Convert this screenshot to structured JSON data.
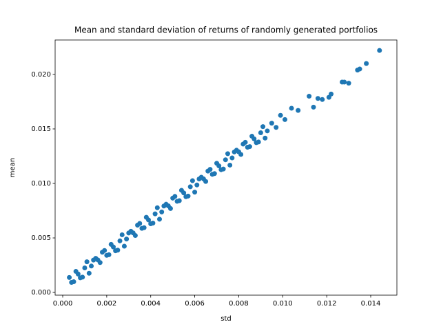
{
  "chart_data": {
    "type": "scatter",
    "title": "Mean and standard deviation of returns of randomly generated portfolios",
    "xlabel": "std",
    "ylabel": "mean",
    "color": "#1f77b4",
    "x": [
      0.0003,
      0.0005,
      0.0007,
      0.0009,
      0.0011,
      0.0013,
      0.0015,
      0.0017,
      0.0019,
      0.0021,
      0.0023,
      0.0025,
      0.0027,
      0.0029,
      0.0031,
      0.0033,
      0.0035,
      0.0037,
      0.0039,
      0.0041,
      0.0043,
      0.0045,
      0.0047,
      0.0049,
      0.0051,
      0.0053,
      0.0055,
      0.0057,
      0.0059,
      0.0061,
      0.0063,
      0.0065,
      0.0067,
      0.0069,
      0.0071,
      0.0073,
      0.0075,
      0.0077,
      0.0079,
      0.0081,
      0.0083,
      0.0085,
      0.0087,
      0.0089,
      0.0091,
      0.0093,
      0.0095,
      0.0097,
      0.0099,
      0.0101,
      0.0004,
      0.0006,
      0.0008,
      0.001,
      0.0012,
      0.0014,
      0.0016,
      0.0018,
      0.002,
      0.0022,
      0.0024,
      0.0026,
      0.0028,
      0.003,
      0.0032,
      0.0034,
      0.0036,
      0.0038,
      0.004,
      0.0042,
      0.0044,
      0.0046,
      0.0048,
      0.005,
      0.0052,
      0.0054,
      0.0056,
      0.0058,
      0.006,
      0.0062,
      0.0064,
      0.0066,
      0.0068,
      0.007,
      0.0072,
      0.0074,
      0.0076,
      0.0078,
      0.008,
      0.0082,
      0.0084,
      0.0086,
      0.0088,
      0.009,
      0.0092,
      0.0104,
      0.0107,
      0.0112,
      0.0114,
      0.0116,
      0.0118,
      0.0121,
      0.0122,
      0.0127,
      0.0128,
      0.013,
      0.0134,
      0.0135,
      0.0138,
      0.0144
    ],
    "y": [
      0.00137,
      0.00098,
      0.00169,
      0.0014,
      0.00281,
      0.00242,
      0.00313,
      0.00274,
      0.00385,
      0.00346,
      0.00417,
      0.00388,
      0.00529,
      0.0049,
      0.00561,
      0.00522,
      0.00633,
      0.00594,
      0.00665,
      0.00636,
      0.00777,
      0.00738,
      0.00809,
      0.0077,
      0.00881,
      0.00842,
      0.00913,
      0.00884,
      0.01025,
      0.00986,
      0.01057,
      0.01018,
      0.01129,
      0.0109,
      0.01161,
      0.01132,
      0.01273,
      0.01234,
      0.01305,
      0.01266,
      0.01377,
      0.01338,
      0.01409,
      0.0138,
      0.01521,
      0.01482,
      0.01553,
      0.01514,
      0.01625,
      0.01586,
      0.00092,
      0.00193,
      0.00134,
      0.00225,
      0.00176,
      0.00297,
      0.00298,
      0.00369,
      0.0034,
      0.00441,
      0.00382,
      0.00473,
      0.00424,
      0.00545,
      0.00546,
      0.00617,
      0.00588,
      0.00689,
      0.0063,
      0.00721,
      0.00672,
      0.00793,
      0.00794,
      0.00865,
      0.00836,
      0.00937,
      0.00878,
      0.00969,
      0.0092,
      0.01041,
      0.01042,
      0.01113,
      0.01084,
      0.01185,
      0.01126,
      0.01217,
      0.01168,
      0.01289,
      0.0129,
      0.01361,
      0.01332,
      0.01433,
      0.01374,
      0.01465,
      0.01416,
      0.0169,
      0.0167,
      0.018,
      0.017,
      0.0178,
      0.0177,
      0.0179,
      0.0182,
      0.0193,
      0.0193,
      0.0192,
      0.0204,
      0.0205,
      0.021,
      0.0222
    ],
    "xlim": [
      -0.000345,
      0.01519
    ],
    "ylim": [
      -0.00025,
      0.02316
    ],
    "xticks": [
      {
        "value": 0,
        "label": "0.000"
      },
      {
        "value": 0.002,
        "label": "0.002"
      },
      {
        "value": 0.004,
        "label": "0.004"
      },
      {
        "value": 0.006,
        "label": "0.006"
      },
      {
        "value": 0.008,
        "label": "0.008"
      },
      {
        "value": 0.01,
        "label": "0.010"
      },
      {
        "value": 0.012,
        "label": "0.012"
      },
      {
        "value": 0.014,
        "label": "0.014"
      }
    ],
    "yticks": [
      {
        "value": 0,
        "label": "0.000"
      },
      {
        "value": 0.005,
        "label": "0.005"
      },
      {
        "value": 0.01,
        "label": "0.010"
      },
      {
        "value": 0.015,
        "label": "0.015"
      },
      {
        "value": 0.02,
        "label": "0.020"
      }
    ]
  }
}
